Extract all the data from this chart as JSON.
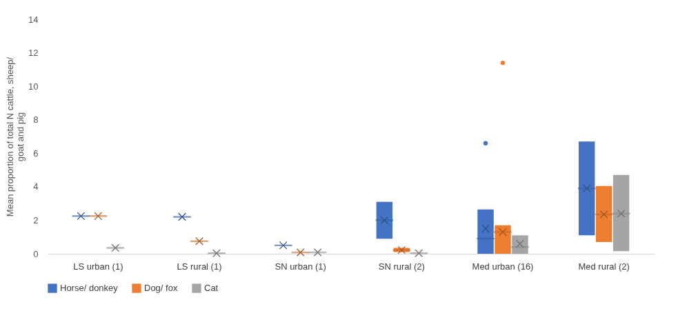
{
  "chart_data": {
    "type": "box",
    "ylabel": "Mean proportion of total N cattle, sheep/ goat and pig",
    "categories": [
      "LS urban (1)",
      "LS rural (1)",
      "SN urban (1)",
      "SN rural (2)",
      "Med urban (16)",
      "Med rural (2)"
    ],
    "ylim": [
      0,
      14
    ],
    "yticks": [
      0,
      2,
      4,
      6,
      8,
      10,
      12,
      14
    ],
    "legend": "bottom",
    "series": [
      {
        "name": "Horse/ donkey",
        "color": "#4472c4",
        "boxes": [
          {
            "low": 2.25,
            "q1": 2.25,
            "median": 2.25,
            "q3": 2.25,
            "high": 2.25,
            "mean": 2.25
          },
          {
            "low": 2.2,
            "q1": 2.2,
            "median": 2.2,
            "q3": 2.2,
            "high": 2.2,
            "mean": 2.2
          },
          {
            "low": 0.5,
            "q1": 0.5,
            "median": 0.5,
            "q3": 0.5,
            "high": 0.5,
            "mean": 0.5
          },
          {
            "low": 0.9,
            "q1": 0.9,
            "median": 2.0,
            "q3": 3.1,
            "high": 3.1,
            "mean": 2.0
          },
          {
            "low": 0,
            "q1": 0,
            "median": 0.9,
            "q3": 2.65,
            "high": 2.65,
            "mean": 1.5,
            "outliers": [
              6.6
            ]
          },
          {
            "low": 1.1,
            "q1": 1.1,
            "median": 3.9,
            "q3": 6.7,
            "high": 6.7,
            "mean": 3.9
          }
        ]
      },
      {
        "name": "Dog/ fox",
        "color": "#ed7d31",
        "boxes": [
          {
            "low": 2.25,
            "q1": 2.25,
            "median": 2.25,
            "q3": 2.25,
            "high": 2.25,
            "mean": 2.25
          },
          {
            "low": 0.75,
            "q1": 0.75,
            "median": 0.75,
            "q3": 0.75,
            "high": 0.75,
            "mean": 0.75
          },
          {
            "low": 0.08,
            "q1": 0.08,
            "median": 0.08,
            "q3": 0.08,
            "high": 0.08,
            "mean": 0.08
          },
          {
            "low": 0.1,
            "q1": 0.1,
            "median": 0.22,
            "q3": 0.35,
            "high": 0.35,
            "mean": 0.22
          },
          {
            "low": 0,
            "q1": 0,
            "median": 1.3,
            "q3": 1.7,
            "high": 1.7,
            "mean": 1.3,
            "outliers": [
              11.4
            ]
          },
          {
            "low": 0.7,
            "q1": 0.7,
            "median": 2.35,
            "q3": 4.05,
            "high": 4.05,
            "mean": 2.35
          }
        ]
      },
      {
        "name": "Cat",
        "color": "#a5a5a5",
        "boxes": [
          {
            "low": 0.35,
            "q1": 0.35,
            "median": 0.35,
            "q3": 0.35,
            "high": 0.35,
            "mean": 0.35
          },
          {
            "low": 0.03,
            "q1": 0.03,
            "median": 0.03,
            "q3": 0.03,
            "high": 0.03,
            "mean": 0.03
          },
          {
            "low": 0.08,
            "q1": 0.08,
            "median": 0.08,
            "q3": 0.08,
            "high": 0.08,
            "mean": 0.08
          },
          {
            "low": 0.03,
            "q1": 0.03,
            "median": 0.03,
            "q3": 0.03,
            "high": 0.03,
            "mean": 0.03
          },
          {
            "low": 0,
            "q1": 0,
            "median": 0.4,
            "q3": 1.1,
            "high": 1.1,
            "mean": 0.6
          },
          {
            "low": 0.15,
            "q1": 0.15,
            "median": 2.4,
            "q3": 4.7,
            "high": 4.7,
            "mean": 2.4
          }
        ]
      }
    ]
  }
}
